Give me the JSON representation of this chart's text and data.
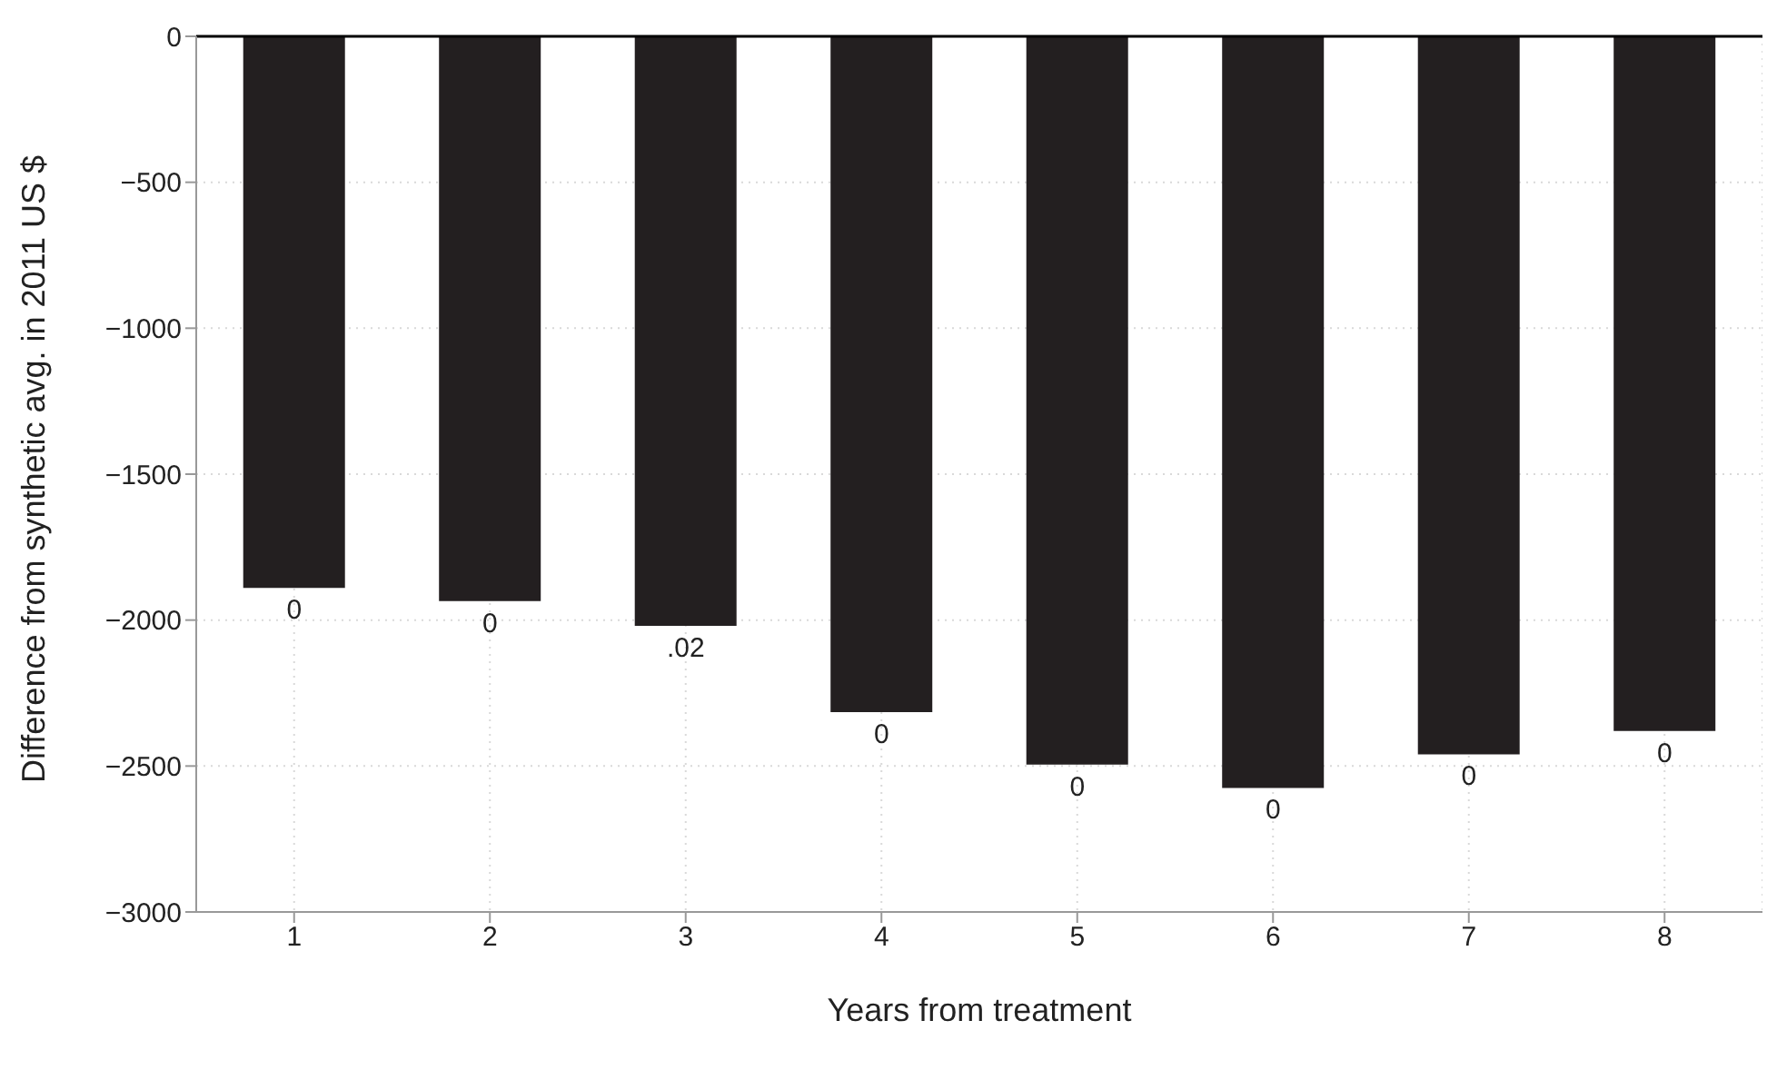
{
  "chart_data": {
    "type": "bar",
    "xlabel": "Years from treatment",
    "ylabel": "Difference from synthetic avg. in 2011 US $",
    "categories": [
      "1",
      "2",
      "3",
      "4",
      "5",
      "6",
      "7",
      "8"
    ],
    "values": [
      -1890,
      -1935,
      -2020,
      -2315,
      -2495,
      -2575,
      -2460,
      -2380
    ],
    "annotations": [
      {
        "text": "0",
        "x": "1",
        "y": -1890
      },
      {
        "text": "0",
        "x": "2",
        "y": -1935
      },
      {
        "text": ".02",
        "x": "3",
        "y": -2020
      },
      {
        "text": "0",
        "x": "4",
        "y": -2315
      },
      {
        "text": "0",
        "x": "5",
        "y": -2495
      },
      {
        "text": "0",
        "x": "6",
        "y": -2575
      },
      {
        "text": "0",
        "x": "7",
        "y": -2460
      },
      {
        "text": "0",
        "x": "8",
        "y": -2380
      }
    ],
    "color": "#231f20",
    "ylim": [
      -3000,
      0
    ],
    "yticks": [
      {
        "value": -3000,
        "label": "−3000"
      },
      {
        "value": -2500,
        "label": "−2500"
      },
      {
        "value": -2000,
        "label": "−2000"
      },
      {
        "value": -1500,
        "label": "−1500"
      },
      {
        "value": -1000,
        "label": "−1000"
      },
      {
        "value": -500,
        "label": "−500"
      },
      0
    ],
    "grid": true,
    "ref_lines": [
      {
        "axis": "y",
        "value": 0,
        "color": "#000000"
      }
    ]
  }
}
